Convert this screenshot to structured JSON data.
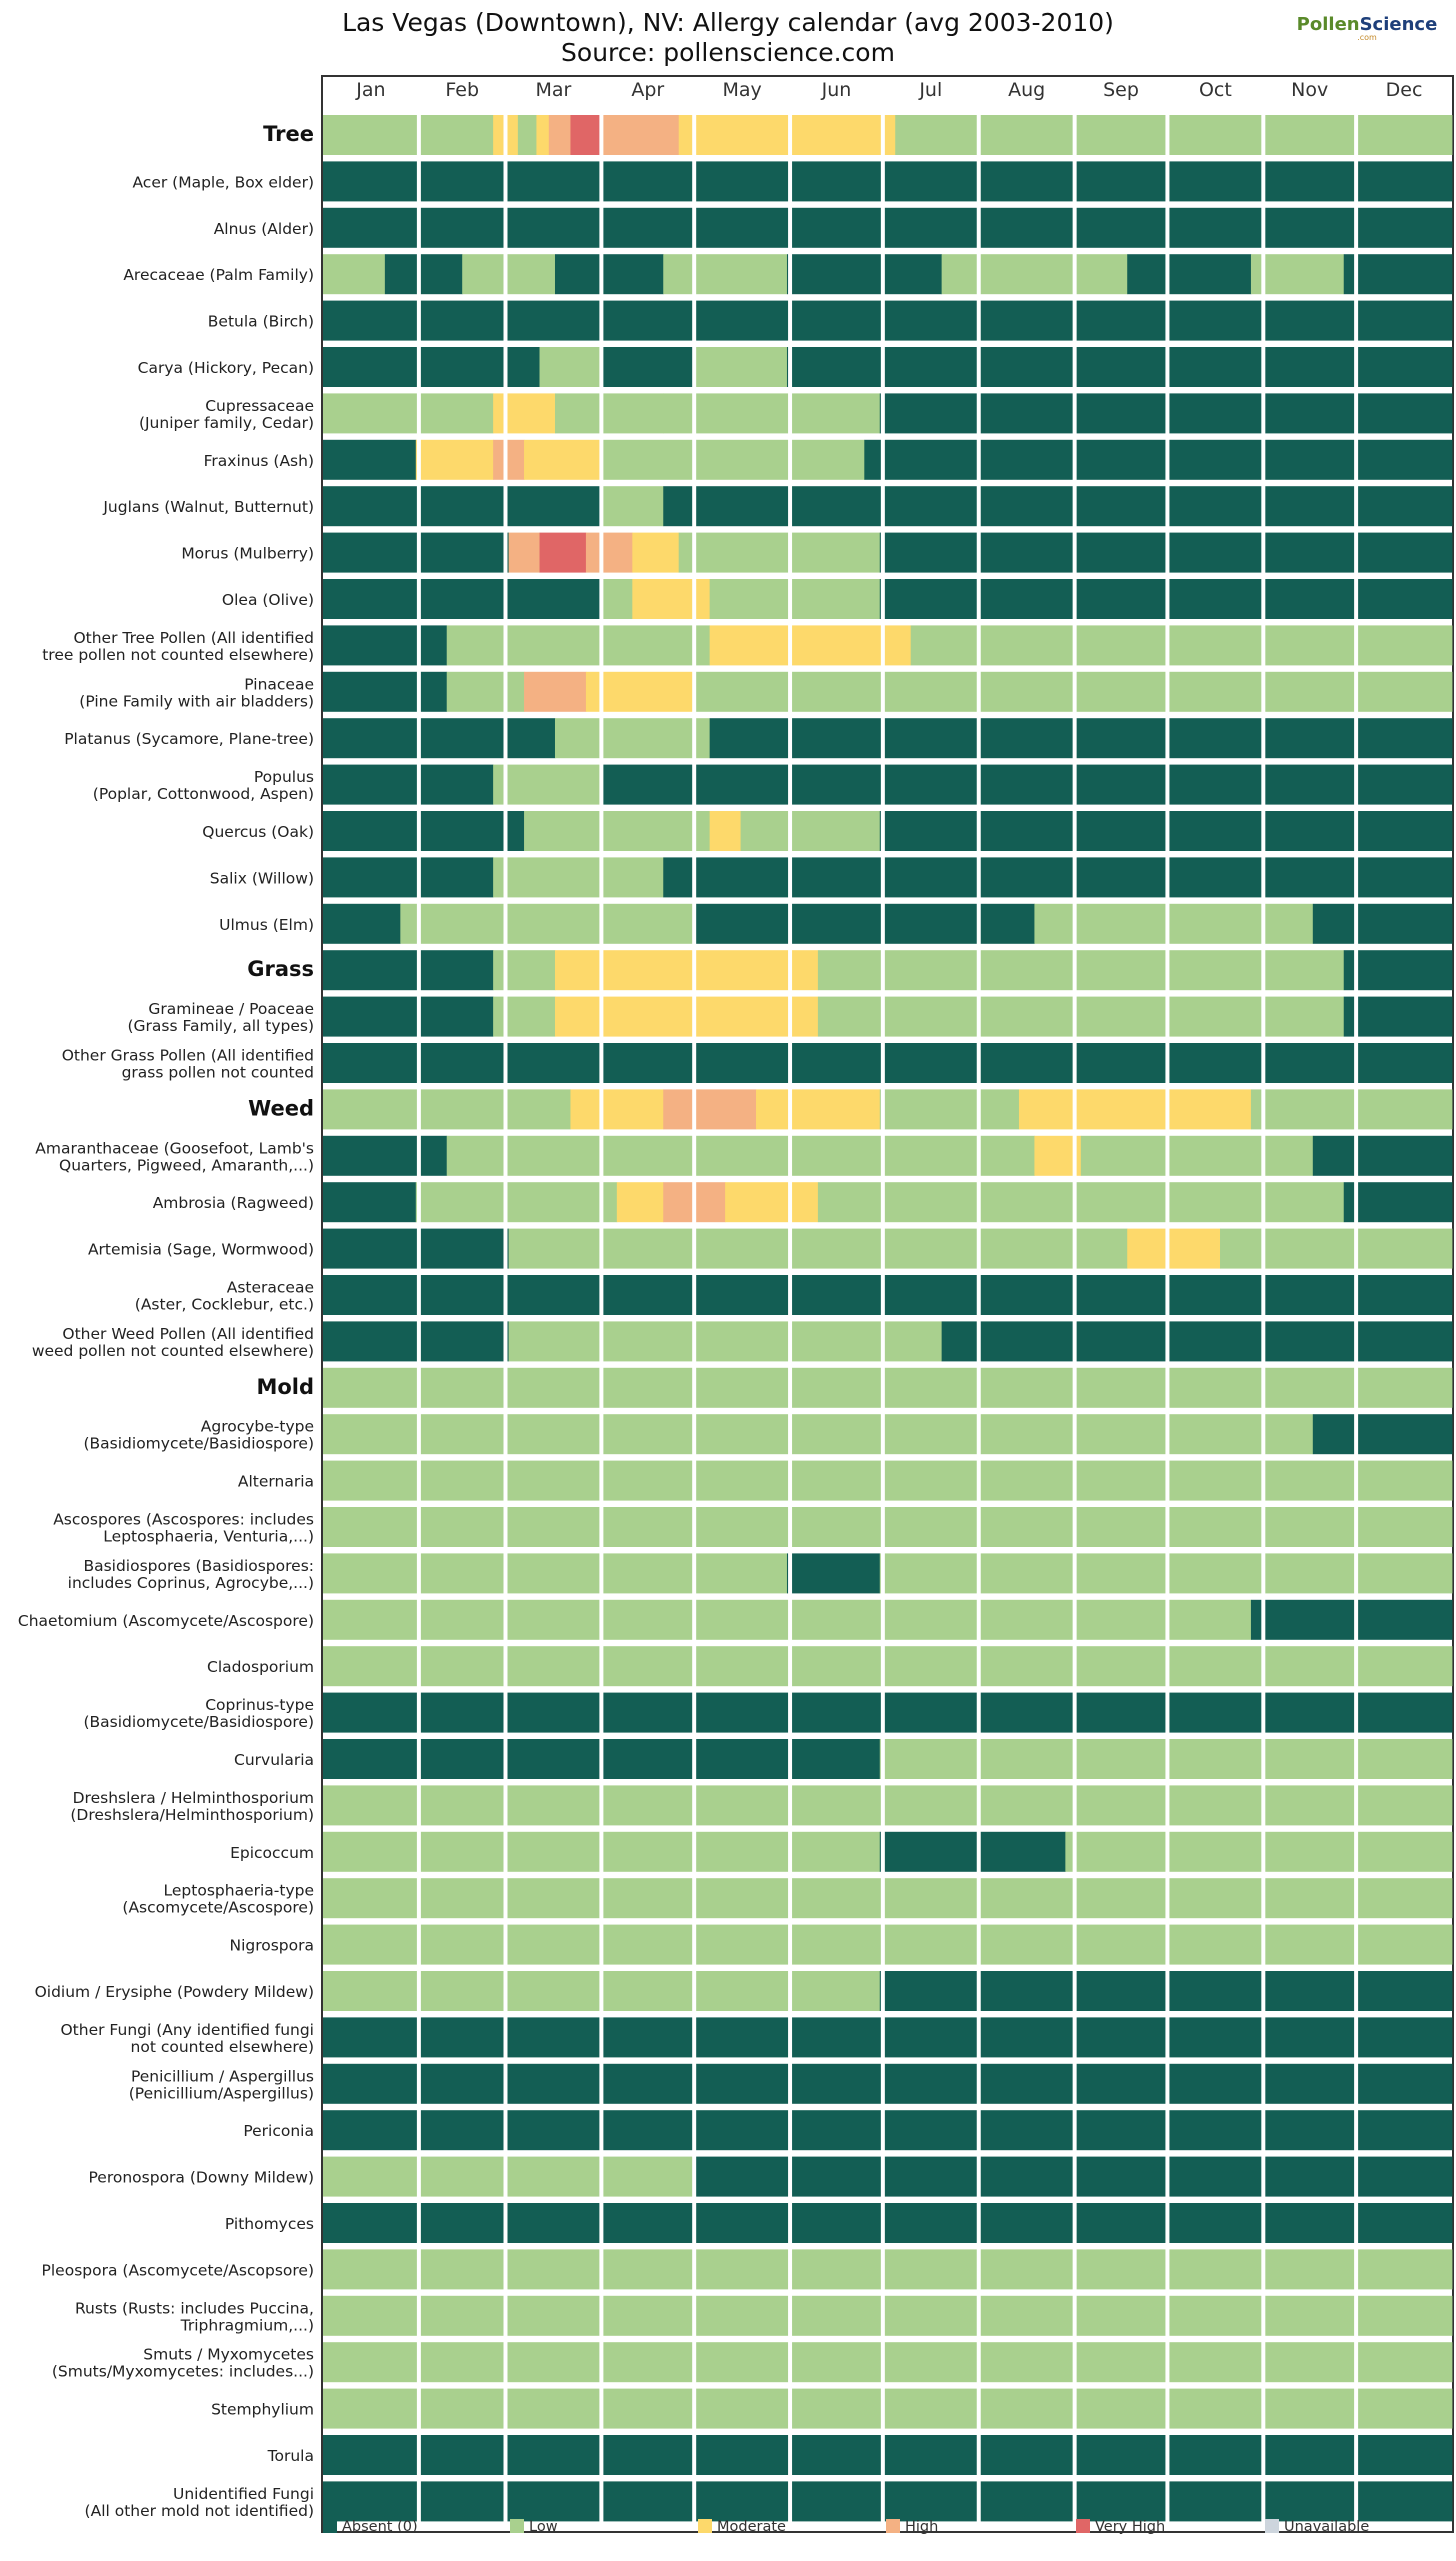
{
  "title": "Las Vegas (Downtown), NV: Allergy calendar (avg 2003-2010)",
  "subtitle": "Source: pollenscience.com",
  "logo": {
    "part1": "Pollen",
    "part2": "Science",
    "domain": ".com"
  },
  "colors": {
    "absent": "#135e54",
    "low": "#a9d08e",
    "moderate": "#fdd96b",
    "high": "#f4b183",
    "very_high": "#e06666",
    "unavailable": "#cdd5dd"
  },
  "chart_data": {
    "type": "heatmap",
    "title": "Las Vegas (Downtown), NV: Allergy calendar (avg 2003-2010)",
    "subtitle": "Source: pollenscience.com",
    "x_months": [
      "Jan",
      "Feb",
      "Mar",
      "Apr",
      "May",
      "Jun",
      "Jul",
      "Aug",
      "Sep",
      "Oct",
      "Nov",
      "Dec"
    ],
    "level_codes": {
      "0": "Absent (0)",
      "1": "Low",
      "2": "Moderate",
      "3": "High",
      "4": "Very High",
      "5": "Unavailable"
    },
    "legend": [
      {
        "label": "Absent (0)",
        "color": "#135e54"
      },
      {
        "label": "Low",
        "color": "#a9d08e"
      },
      {
        "label": "Moderate",
        "color": "#fdd96b"
      },
      {
        "label": "High",
        "color": "#f4b183"
      },
      {
        "label": "Very High",
        "color": "#e06666"
      },
      {
        "label": "Unavailable",
        "color": "#cdd5dd"
      }
    ],
    "rows": [
      {
        "label": "Tree",
        "category": true,
        "segments": [
          [
            1,
            1,
            55
          ],
          [
            2,
            56,
            63
          ],
          [
            1,
            64,
            69
          ],
          [
            2,
            70,
            73
          ],
          [
            3,
            74,
            80
          ],
          [
            4,
            81,
            90
          ],
          [
            3,
            91,
            115
          ],
          [
            2,
            116,
            185
          ],
          [
            1,
            186,
            365
          ]
        ]
      },
      {
        "label": "Acer (Maple, Box elder)",
        "segments": [
          [
            0,
            1,
            365
          ]
        ]
      },
      {
        "label": "Alnus (Alder)",
        "segments": [
          [
            0,
            1,
            365
          ]
        ]
      },
      {
        "label": "Arecaceae (Palm Family)",
        "segments": [
          [
            1,
            1,
            20
          ],
          [
            0,
            21,
            45
          ],
          [
            1,
            46,
            75
          ],
          [
            0,
            76,
            110
          ],
          [
            1,
            111,
            150
          ],
          [
            0,
            151,
            200
          ],
          [
            1,
            201,
            260
          ],
          [
            0,
            261,
            300
          ],
          [
            1,
            301,
            330
          ],
          [
            0,
            331,
            365
          ]
        ]
      },
      {
        "label": "Betula (Birch)",
        "segments": [
          [
            0,
            1,
            365
          ]
        ]
      },
      {
        "label": "Carya (Hickory, Pecan)",
        "segments": [
          [
            0,
            1,
            70
          ],
          [
            1,
            71,
            90
          ],
          [
            0,
            91,
            120
          ],
          [
            1,
            121,
            150
          ],
          [
            0,
            151,
            365
          ]
        ]
      },
      {
        "label": "Cupressaceae (Juniper family, Cedar)",
        "segments": [
          [
            1,
            1,
            55
          ],
          [
            2,
            56,
            75
          ],
          [
            1,
            76,
            110
          ],
          [
            1,
            111,
            180
          ],
          [
            0,
            181,
            365
          ]
        ]
      },
      {
        "label": "Fraxinus (Ash)",
        "segments": [
          [
            0,
            1,
            30
          ],
          [
            2,
            31,
            55
          ],
          [
            3,
            56,
            65
          ],
          [
            2,
            66,
            90
          ],
          [
            1,
            91,
            175
          ],
          [
            0,
            176,
            365
          ]
        ]
      },
      {
        "label": "Juglans (Walnut, Butternut)",
        "segments": [
          [
            0,
            1,
            90
          ],
          [
            1,
            91,
            110
          ],
          [
            0,
            111,
            365
          ]
        ]
      },
      {
        "label": "Morus (Mulberry)",
        "segments": [
          [
            0,
            1,
            60
          ],
          [
            3,
            61,
            70
          ],
          [
            4,
            71,
            85
          ],
          [
            3,
            86,
            100
          ],
          [
            2,
            101,
            115
          ],
          [
            1,
            116,
            180
          ],
          [
            0,
            181,
            365
          ]
        ]
      },
      {
        "label": "Olea (Olive)",
        "segments": [
          [
            0,
            1,
            90
          ],
          [
            1,
            91,
            100
          ],
          [
            2,
            101,
            125
          ],
          [
            1,
            126,
            180
          ],
          [
            0,
            181,
            365
          ]
        ]
      },
      {
        "label": "Other Tree Pollen (All identified tree pollen not counted elsewhere)",
        "segments": [
          [
            0,
            1,
            40
          ],
          [
            1,
            41,
            125
          ],
          [
            2,
            126,
            190
          ],
          [
            1,
            191,
            365
          ]
        ]
      },
      {
        "label": "Pinaceae (Pine Family with air bladders)",
        "segments": [
          [
            0,
            1,
            40
          ],
          [
            1,
            41,
            65
          ],
          [
            3,
            66,
            85
          ],
          [
            2,
            86,
            120
          ],
          [
            1,
            121,
            365
          ]
        ]
      },
      {
        "label": "Platanus (Sycamore, Plane-tree)",
        "segments": [
          [
            0,
            1,
            75
          ],
          [
            1,
            76,
            125
          ],
          [
            0,
            126,
            365
          ]
        ]
      },
      {
        "label": "Populus (Poplar, Cottonwood, Aspen)",
        "segments": [
          [
            0,
            1,
            55
          ],
          [
            1,
            56,
            90
          ],
          [
            0,
            91,
            365
          ]
        ]
      },
      {
        "label": "Quercus (Oak)",
        "segments": [
          [
            0,
            1,
            65
          ],
          [
            1,
            66,
            125
          ],
          [
            2,
            126,
            135
          ],
          [
            1,
            136,
            180
          ],
          [
            0,
            181,
            365
          ]
        ]
      },
      {
        "label": "Salix (Willow)",
        "segments": [
          [
            0,
            1,
            55
          ],
          [
            1,
            56,
            110
          ],
          [
            0,
            111,
            365
          ]
        ]
      },
      {
        "label": "Ulmus (Elm)",
        "segments": [
          [
            0,
            1,
            25
          ],
          [
            1,
            26,
            120
          ],
          [
            0,
            121,
            230
          ],
          [
            1,
            231,
            320
          ],
          [
            0,
            321,
            365
          ]
        ]
      },
      {
        "label": "Grass",
        "category": true,
        "segments": [
          [
            0,
            1,
            55
          ],
          [
            1,
            56,
            75
          ],
          [
            2,
            76,
            160
          ],
          [
            1,
            161,
            330
          ],
          [
            0,
            331,
            365
          ]
        ]
      },
      {
        "label": "Gramineae / Poaceae (Grass Family, all types)",
        "segments": [
          [
            0,
            1,
            55
          ],
          [
            1,
            56,
            75
          ],
          [
            2,
            76,
            160
          ],
          [
            1,
            161,
            330
          ],
          [
            0,
            331,
            365
          ]
        ]
      },
      {
        "label": "Other Grass Pollen (All identified grass pollen not counted elsewhere)",
        "segments": [
          [
            0,
            1,
            365
          ]
        ]
      },
      {
        "label": "Weed",
        "category": true,
        "segments": [
          [
            1,
            1,
            80
          ],
          [
            2,
            81,
            110
          ],
          [
            3,
            111,
            140
          ],
          [
            2,
            141,
            180
          ],
          [
            1,
            181,
            225
          ],
          [
            2,
            226,
            300
          ],
          [
            1,
            301,
            365
          ]
        ]
      },
      {
        "label": "Amaranthaceae (Goosefoot, Lamb's Quarters, Pigweed, Amaranth,...)",
        "segments": [
          [
            0,
            1,
            40
          ],
          [
            1,
            41,
            230
          ],
          [
            2,
            231,
            245
          ],
          [
            1,
            246,
            320
          ],
          [
            0,
            321,
            365
          ]
        ]
      },
      {
        "label": "Ambrosia (Ragweed)",
        "segments": [
          [
            0,
            1,
            30
          ],
          [
            1,
            31,
            95
          ],
          [
            2,
            96,
            110
          ],
          [
            3,
            111,
            130
          ],
          [
            2,
            131,
            160
          ],
          [
            1,
            161,
            330
          ],
          [
            0,
            331,
            365
          ]
        ]
      },
      {
        "label": "Artemisia (Sage, Wormwood)",
        "segments": [
          [
            0,
            1,
            60
          ],
          [
            1,
            61,
            260
          ],
          [
            2,
            261,
            290
          ],
          [
            1,
            291,
            365
          ]
        ]
      },
      {
        "label": "Asteraceae (Aster, Cocklebur, etc.)",
        "segments": [
          [
            0,
            1,
            365
          ]
        ]
      },
      {
        "label": "Other Weed Pollen (All identified weed pollen not counted elsewhere)",
        "segments": [
          [
            0,
            1,
            60
          ],
          [
            1,
            61,
            200
          ],
          [
            0,
            201,
            365
          ]
        ]
      },
      {
        "label": "Mold",
        "category": true,
        "segments": [
          [
            1,
            1,
            365
          ]
        ]
      },
      {
        "label": "Agrocybe-type (Basidiomycete/Basidiospore)",
        "segments": [
          [
            1,
            1,
            320
          ],
          [
            0,
            321,
            365
          ]
        ]
      },
      {
        "label": "Alternaria",
        "segments": [
          [
            1,
            1,
            365
          ]
        ]
      },
      {
        "label": "Ascospores (Ascospores: includes Leptosphaeria, Venturia,...)",
        "segments": [
          [
            1,
            1,
            365
          ]
        ]
      },
      {
        "label": "Basidiospores (Basidiospores: includes Coprinus, Agrocybe,...)",
        "segments": [
          [
            1,
            1,
            150
          ],
          [
            0,
            151,
            180
          ],
          [
            1,
            181,
            365
          ]
        ]
      },
      {
        "label": "Chaetomium (Ascomycete/Ascospore)",
        "segments": [
          [
            1,
            1,
            300
          ],
          [
            0,
            301,
            365
          ]
        ]
      },
      {
        "label": "Cladosporium",
        "segments": [
          [
            1,
            1,
            365
          ]
        ]
      },
      {
        "label": "Coprinus-type (Basidiomycete/Basidiospore)",
        "segments": [
          [
            0,
            1,
            365
          ]
        ]
      },
      {
        "label": "Curvularia",
        "segments": [
          [
            0,
            1,
            180
          ],
          [
            1,
            181,
            365
          ]
        ]
      },
      {
        "label": "Dreshslera / Helminthosporium (Dreshslera/Helminthosporium)",
        "segments": [
          [
            1,
            1,
            365
          ]
        ]
      },
      {
        "label": "Epicoccum",
        "segments": [
          [
            1,
            1,
            180
          ],
          [
            0,
            181,
            240
          ],
          [
            1,
            241,
            365
          ]
        ]
      },
      {
        "label": "Leptosphaeria-type (Ascomycete/Ascospore)",
        "segments": [
          [
            1,
            1,
            365
          ]
        ]
      },
      {
        "label": "Nigrospora",
        "segments": [
          [
            1,
            1,
            365
          ]
        ]
      },
      {
        "label": "Oidium / Erysiphe (Powdery Mildew)",
        "segments": [
          [
            1,
            1,
            180
          ],
          [
            0,
            181,
            365
          ]
        ]
      },
      {
        "label": "Other Fungi (Any identified fungi not counted elsewhere)",
        "segments": [
          [
            0,
            1,
            365
          ]
        ]
      },
      {
        "label": "Penicillium / Aspergillus (Penicillium/Aspergillus)",
        "segments": [
          [
            0,
            1,
            365
          ]
        ]
      },
      {
        "label": "Periconia",
        "segments": [
          [
            0,
            1,
            365
          ]
        ]
      },
      {
        "label": "Peronospora (Downy Mildew)",
        "segments": [
          [
            1,
            1,
            120
          ],
          [
            0,
            121,
            365
          ]
        ]
      },
      {
        "label": "Pithomyces",
        "segments": [
          [
            0,
            1,
            365
          ]
        ]
      },
      {
        "label": "Pleospora (Ascomycete/Ascopsore)",
        "segments": [
          [
            1,
            1,
            365
          ]
        ]
      },
      {
        "label": "Rusts (Rusts: includes Puccina, Triphragmium,...)",
        "segments": [
          [
            1,
            1,
            365
          ]
        ]
      },
      {
        "label": "Smuts / Myxomycetes (Smuts/Myxomycetes: includes...)",
        "segments": [
          [
            1,
            1,
            365
          ]
        ]
      },
      {
        "label": "Stemphylium",
        "segments": [
          [
            1,
            1,
            365
          ]
        ]
      },
      {
        "label": "Torula",
        "segments": [
          [
            0,
            1,
            365
          ]
        ]
      },
      {
        "label": "Unidentified Fungi (All other mold not identified)",
        "segments": [
          [
            0,
            1,
            365
          ]
        ]
      }
    ]
  }
}
